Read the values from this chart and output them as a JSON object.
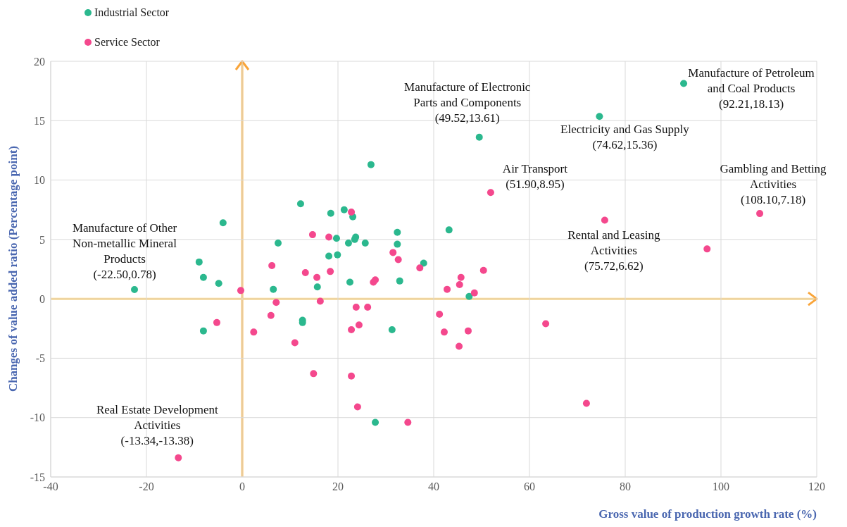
{
  "chart_data": {
    "type": "scatter",
    "xlabel": "Gross value of production growth rate (%)",
    "ylabel": "Changes of value added ratio (Percentage point)",
    "xlim": [
      -40,
      120
    ],
    "xticks": [
      -40,
      -20,
      0,
      20,
      40,
      60,
      80,
      100,
      120
    ],
    "ylim": [
      -15,
      20
    ],
    "yticks": [
      -15,
      -10,
      -5,
      0,
      5,
      10,
      15,
      20
    ],
    "grid": true,
    "legend": "top left",
    "marker": "circle",
    "series": [
      {
        "name": "Industrial Sector",
        "color": "#2bb88e",
        "x": [
          -22.5,
          -9.0,
          -8.1,
          -8.1,
          -4.9,
          -4.0,
          6.5,
          7.5,
          12.2,
          12.6,
          12.6,
          15.7,
          18.1,
          18.5,
          19.7,
          19.9,
          21.3,
          22.2,
          22.5,
          23.1,
          23.5,
          23.7,
          25.7,
          26.9,
          32.4,
          32.4,
          32.9,
          31.3,
          37.9,
          43.2,
          47.4,
          27.8,
          49.52,
          74.62,
          92.21
        ],
        "values": [
          0.78,
          3.1,
          1.8,
          -2.7,
          1.3,
          6.4,
          0.8,
          4.7,
          8.0,
          -1.8,
          -2.0,
          1.0,
          3.6,
          7.2,
          5.1,
          3.7,
          7.5,
          4.7,
          1.4,
          6.9,
          5.0,
          5.2,
          4.7,
          11.3,
          5.6,
          4.6,
          1.5,
          -2.6,
          3.0,
          5.8,
          0.2,
          -10.4,
          13.61,
          15.36,
          18.13
        ]
      },
      {
        "name": "Service Sector",
        "color": "#f4488d",
        "x": [
          -0.3,
          6.2,
          -5.3,
          2.4,
          7.1,
          6.0,
          11.0,
          13.2,
          14.7,
          18.1,
          15.6,
          18.4,
          16.3,
          22.8,
          31.5,
          32.6,
          37.1,
          27.4,
          27.8,
          23.8,
          26.2,
          22.8,
          24.4,
          41.2,
          42.2,
          47.2,
          45.3,
          42.8,
          45.7,
          45.4,
          48.5,
          50.4,
          14.9,
          22.8,
          24.1,
          34.6,
          97.1,
          63.4,
          71.9,
          51.9,
          75.72,
          108.1,
          -13.34
        ],
        "values": [
          0.7,
          2.8,
          -2.0,
          -2.8,
          -0.3,
          -1.4,
          -3.7,
          2.2,
          5.4,
          5.2,
          1.8,
          2.3,
          -0.2,
          7.3,
          3.9,
          3.3,
          2.6,
          1.4,
          1.6,
          -0.7,
          -0.7,
          -2.6,
          -2.2,
          -1.3,
          -2.8,
          -2.7,
          -4.0,
          0.8,
          1.8,
          1.2,
          0.5,
          2.4,
          -6.3,
          -6.5,
          -9.1,
          -10.4,
          4.2,
          -2.1,
          -8.8,
          8.95,
          6.62,
          7.18,
          -13.38
        ]
      }
    ],
    "ref_lines": [
      {
        "axis": "x",
        "value": 0,
        "color": "#fbbd5a"
      },
      {
        "axis": "y",
        "value": 0,
        "color": "#fdd37c"
      }
    ],
    "annotations": [
      {
        "text": "Manufacture of Electronic Parts and Components (49.52,13.61)",
        "x": 49.52,
        "y": 13.61
      },
      {
        "text": "Manufacture of Petroleum and Coal Products (92.21,18.13)",
        "x": 92.21,
        "y": 18.13
      },
      {
        "text": "Electricity and Gas Supply (74.62,15.36)",
        "x": 74.62,
        "y": 15.36
      },
      {
        "text": "Air Transport (51.90,8.95)",
        "x": 51.9,
        "y": 8.95
      },
      {
        "text": "Gambling and Betting Activities (108.10,7.18)",
        "x": 108.1,
        "y": 7.18
      },
      {
        "text": "Rental and Leasing Activities (75.72,6.62)",
        "x": 75.72,
        "y": 6.62
      },
      {
        "text": "Manufacture of Other Non-metallic Mineral Products (-22.50,0.78)",
        "x": -22.5,
        "y": 0.78
      },
      {
        "text": "Real Estate Development Activities (-13.34,-13.38)",
        "x": -13.34,
        "y": -13.38
      }
    ]
  }
}
